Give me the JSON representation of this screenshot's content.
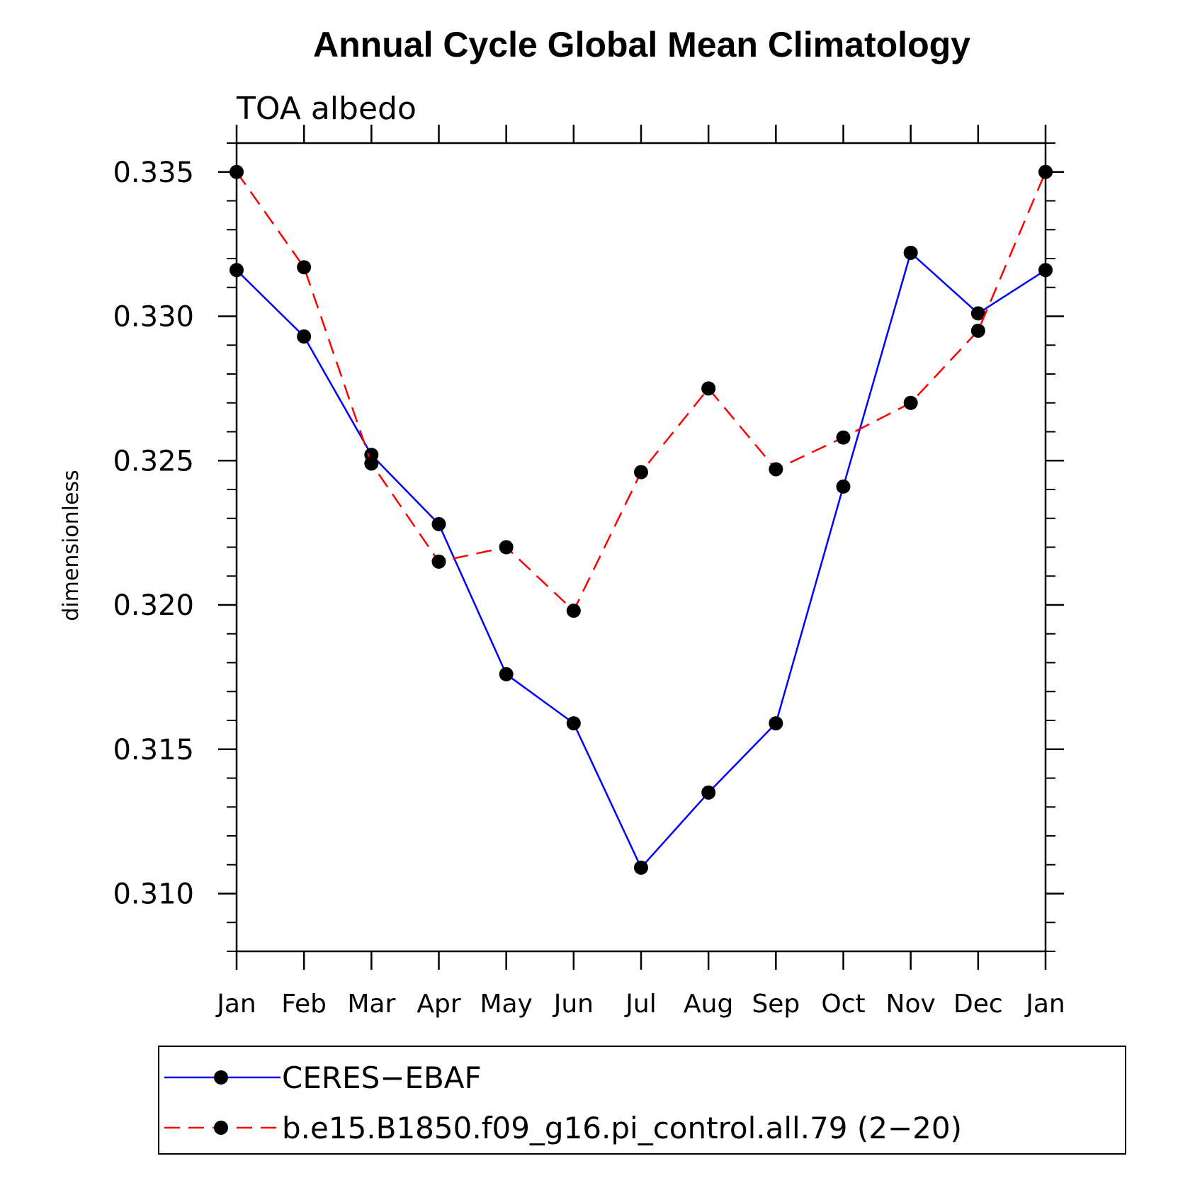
{
  "chart_data": {
    "type": "line",
    "title": "Annual Cycle Global Mean Climatology",
    "subtitle": "TOA albedo",
    "ylabel": "dimensionless",
    "xlabel": "",
    "categories": [
      "Jan",
      "Feb",
      "Mar",
      "Apr",
      "May",
      "Jun",
      "Jul",
      "Aug",
      "Sep",
      "Oct",
      "Nov",
      "Dec",
      "Jan"
    ],
    "ylim": [
      0.308,
      0.336
    ],
    "yticks": [
      0.31,
      0.315,
      0.32,
      0.325,
      0.33,
      0.335
    ],
    "ytick_labels": [
      "0.310",
      "0.315",
      "0.320",
      "0.325",
      "0.330",
      "0.335"
    ],
    "grid": false,
    "legend_position": "bottom",
    "series": [
      {
        "name": "CERES−EBAF",
        "color": "#0000ff",
        "dash": "solid",
        "values": [
          0.3316,
          0.3293,
          0.3252,
          0.3228,
          0.3176,
          0.3159,
          0.3109,
          0.3135,
          0.3159,
          0.3241,
          0.3322,
          0.3301,
          0.3316
        ]
      },
      {
        "name": "b.e15.B1850.f09_g16.pi_control.all.79 (2−20)",
        "color": "#ff0000",
        "dash": "dashed",
        "values": [
          0.335,
          0.3317,
          0.3249,
          0.3215,
          0.322,
          0.3198,
          0.3246,
          0.3275,
          0.3247,
          0.3258,
          0.327,
          0.3295,
          0.335
        ]
      }
    ]
  }
}
